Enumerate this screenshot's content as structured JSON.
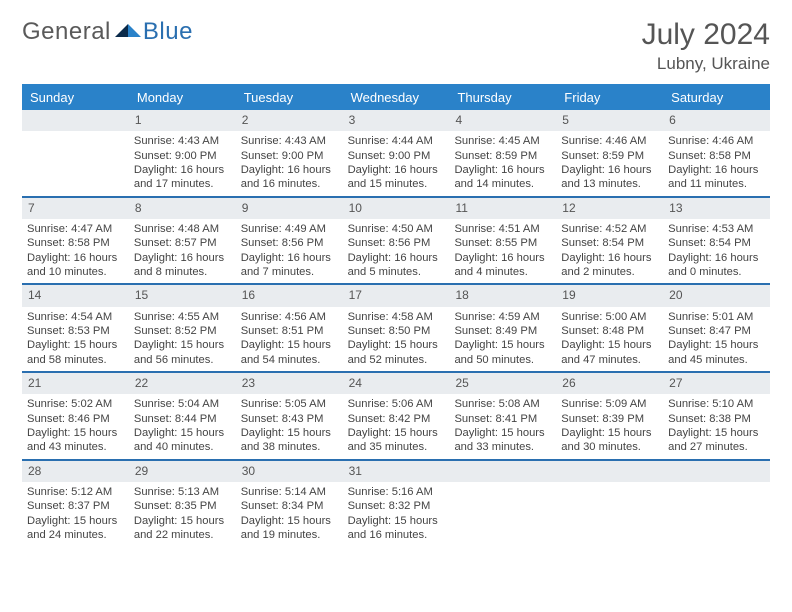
{
  "brand": {
    "part1": "General",
    "part2": "Blue"
  },
  "title": "July 2024",
  "location": "Lubny, Ukraine",
  "colors": {
    "header_bg": "#2a82c9",
    "rule": "#2a6fb0",
    "daynum_bg": "#e9ecef",
    "text": "#444444"
  },
  "dayNames": [
    "Sunday",
    "Monday",
    "Tuesday",
    "Wednesday",
    "Thursday",
    "Friday",
    "Saturday"
  ],
  "weeks": [
    [
      {
        "n": "",
        "sr": "",
        "ss": "",
        "dl": ""
      },
      {
        "n": "1",
        "sr": "Sunrise: 4:43 AM",
        "ss": "Sunset: 9:00 PM",
        "dl": "Daylight: 16 hours and 17 minutes."
      },
      {
        "n": "2",
        "sr": "Sunrise: 4:43 AM",
        "ss": "Sunset: 9:00 PM",
        "dl": "Daylight: 16 hours and 16 minutes."
      },
      {
        "n": "3",
        "sr": "Sunrise: 4:44 AM",
        "ss": "Sunset: 9:00 PM",
        "dl": "Daylight: 16 hours and 15 minutes."
      },
      {
        "n": "4",
        "sr": "Sunrise: 4:45 AM",
        "ss": "Sunset: 8:59 PM",
        "dl": "Daylight: 16 hours and 14 minutes."
      },
      {
        "n": "5",
        "sr": "Sunrise: 4:46 AM",
        "ss": "Sunset: 8:59 PM",
        "dl": "Daylight: 16 hours and 13 minutes."
      },
      {
        "n": "6",
        "sr": "Sunrise: 4:46 AM",
        "ss": "Sunset: 8:58 PM",
        "dl": "Daylight: 16 hours and 11 minutes."
      }
    ],
    [
      {
        "n": "7",
        "sr": "Sunrise: 4:47 AM",
        "ss": "Sunset: 8:58 PM",
        "dl": "Daylight: 16 hours and 10 minutes."
      },
      {
        "n": "8",
        "sr": "Sunrise: 4:48 AM",
        "ss": "Sunset: 8:57 PM",
        "dl": "Daylight: 16 hours and 8 minutes."
      },
      {
        "n": "9",
        "sr": "Sunrise: 4:49 AM",
        "ss": "Sunset: 8:56 PM",
        "dl": "Daylight: 16 hours and 7 minutes."
      },
      {
        "n": "10",
        "sr": "Sunrise: 4:50 AM",
        "ss": "Sunset: 8:56 PM",
        "dl": "Daylight: 16 hours and 5 minutes."
      },
      {
        "n": "11",
        "sr": "Sunrise: 4:51 AM",
        "ss": "Sunset: 8:55 PM",
        "dl": "Daylight: 16 hours and 4 minutes."
      },
      {
        "n": "12",
        "sr": "Sunrise: 4:52 AM",
        "ss": "Sunset: 8:54 PM",
        "dl": "Daylight: 16 hours and 2 minutes."
      },
      {
        "n": "13",
        "sr": "Sunrise: 4:53 AM",
        "ss": "Sunset: 8:54 PM",
        "dl": "Daylight: 16 hours and 0 minutes."
      }
    ],
    [
      {
        "n": "14",
        "sr": "Sunrise: 4:54 AM",
        "ss": "Sunset: 8:53 PM",
        "dl": "Daylight: 15 hours and 58 minutes."
      },
      {
        "n": "15",
        "sr": "Sunrise: 4:55 AM",
        "ss": "Sunset: 8:52 PM",
        "dl": "Daylight: 15 hours and 56 minutes."
      },
      {
        "n": "16",
        "sr": "Sunrise: 4:56 AM",
        "ss": "Sunset: 8:51 PM",
        "dl": "Daylight: 15 hours and 54 minutes."
      },
      {
        "n": "17",
        "sr": "Sunrise: 4:58 AM",
        "ss": "Sunset: 8:50 PM",
        "dl": "Daylight: 15 hours and 52 minutes."
      },
      {
        "n": "18",
        "sr": "Sunrise: 4:59 AM",
        "ss": "Sunset: 8:49 PM",
        "dl": "Daylight: 15 hours and 50 minutes."
      },
      {
        "n": "19",
        "sr": "Sunrise: 5:00 AM",
        "ss": "Sunset: 8:48 PM",
        "dl": "Daylight: 15 hours and 47 minutes."
      },
      {
        "n": "20",
        "sr": "Sunrise: 5:01 AM",
        "ss": "Sunset: 8:47 PM",
        "dl": "Daylight: 15 hours and 45 minutes."
      }
    ],
    [
      {
        "n": "21",
        "sr": "Sunrise: 5:02 AM",
        "ss": "Sunset: 8:46 PM",
        "dl": "Daylight: 15 hours and 43 minutes."
      },
      {
        "n": "22",
        "sr": "Sunrise: 5:04 AM",
        "ss": "Sunset: 8:44 PM",
        "dl": "Daylight: 15 hours and 40 minutes."
      },
      {
        "n": "23",
        "sr": "Sunrise: 5:05 AM",
        "ss": "Sunset: 8:43 PM",
        "dl": "Daylight: 15 hours and 38 minutes."
      },
      {
        "n": "24",
        "sr": "Sunrise: 5:06 AM",
        "ss": "Sunset: 8:42 PM",
        "dl": "Daylight: 15 hours and 35 minutes."
      },
      {
        "n": "25",
        "sr": "Sunrise: 5:08 AM",
        "ss": "Sunset: 8:41 PM",
        "dl": "Daylight: 15 hours and 33 minutes."
      },
      {
        "n": "26",
        "sr": "Sunrise: 5:09 AM",
        "ss": "Sunset: 8:39 PM",
        "dl": "Daylight: 15 hours and 30 minutes."
      },
      {
        "n": "27",
        "sr": "Sunrise: 5:10 AM",
        "ss": "Sunset: 8:38 PM",
        "dl": "Daylight: 15 hours and 27 minutes."
      }
    ],
    [
      {
        "n": "28",
        "sr": "Sunrise: 5:12 AM",
        "ss": "Sunset: 8:37 PM",
        "dl": "Daylight: 15 hours and 24 minutes."
      },
      {
        "n": "29",
        "sr": "Sunrise: 5:13 AM",
        "ss": "Sunset: 8:35 PM",
        "dl": "Daylight: 15 hours and 22 minutes."
      },
      {
        "n": "30",
        "sr": "Sunrise: 5:14 AM",
        "ss": "Sunset: 8:34 PM",
        "dl": "Daylight: 15 hours and 19 minutes."
      },
      {
        "n": "31",
        "sr": "Sunrise: 5:16 AM",
        "ss": "Sunset: 8:32 PM",
        "dl": "Daylight: 15 hours and 16 minutes."
      },
      {
        "n": "",
        "sr": "",
        "ss": "",
        "dl": ""
      },
      {
        "n": "",
        "sr": "",
        "ss": "",
        "dl": ""
      },
      {
        "n": "",
        "sr": "",
        "ss": "",
        "dl": ""
      }
    ]
  ]
}
